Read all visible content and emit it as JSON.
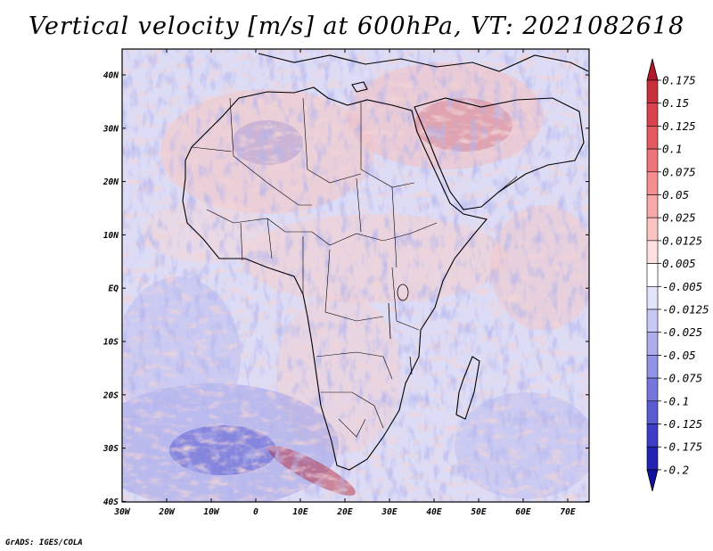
{
  "title": "Vertical velocity [m/s] at 600hPa, VT: 2021082618",
  "credit": "GrADS: IGES/COLA",
  "map": {
    "lon_labels": [
      "30W",
      "20W",
      "10W",
      "0",
      "10E",
      "20E",
      "30E",
      "40E",
      "50E",
      "60E",
      "70E"
    ],
    "lat_labels": [
      "40N",
      "30N",
      "20N",
      "10N",
      "EQ",
      "10S",
      "20S",
      "30S",
      "40S"
    ],
    "region": {
      "lon_range": [
        -30,
        75
      ],
      "lat_range": [
        -40,
        45
      ]
    }
  },
  "colorbar": {
    "levels": [
      "0.175",
      "0.15",
      "0.125",
      "0.1",
      "0.075",
      "0.05",
      "0.025",
      "0.0125",
      "0.005",
      "-0.005",
      "-0.0125",
      "-0.025",
      "-0.05",
      "-0.075",
      "-0.1",
      "-0.125",
      "-0.175",
      "-0.2"
    ],
    "colors": [
      "#b2182b",
      "#c8303c",
      "#d9434d",
      "#e55a60",
      "#ee7477",
      "#f48e8f",
      "#f9a8a8",
      "#fcc3c3",
      "#fde0e0",
      "#ffffff",
      "#e3e3fb",
      "#c8c8f5",
      "#adadee",
      "#9292e6",
      "#7676dd",
      "#5a5ad3",
      "#3d3dc6",
      "#2222b3",
      "#1212a0"
    ],
    "top_arrow_color": "#b2182b",
    "bottom_arrow_color": "#1212a0"
  }
}
